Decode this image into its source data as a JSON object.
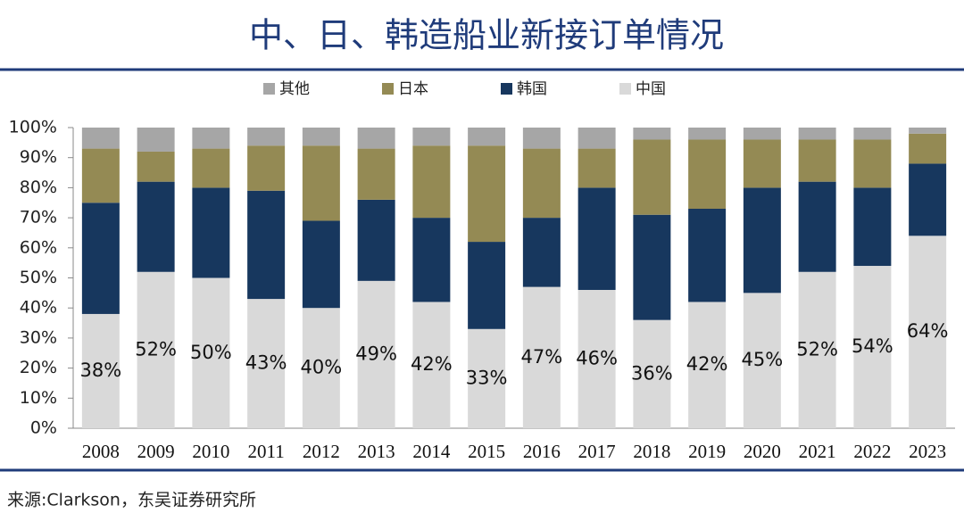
{
  "chart_data": {
    "type": "stacked_bar",
    "title": "中、日、韩造船业新接订单情况",
    "footnote": "来源:Clarkson，东吴证券研究所",
    "categories": [
      "2008",
      "2009",
      "2010",
      "2011",
      "2012",
      "2013",
      "2014",
      "2015",
      "2016",
      "2017",
      "2018",
      "2019",
      "2020",
      "2021",
      "2022",
      "2023"
    ],
    "series": [
      {
        "name": "中国",
        "color": "#d9d9d9",
        "values": [
          38,
          52,
          50,
          43,
          40,
          49,
          42,
          33,
          47,
          46,
          36,
          42,
          45,
          52,
          54,
          64
        ],
        "value_labels": [
          "38%",
          "52%",
          "50%",
          "43%",
          "40%",
          "49%",
          "42%",
          "33%",
          "47%",
          "46%",
          "36%",
          "42%",
          "45%",
          "52%",
          "54%",
          "64%"
        ]
      },
      {
        "name": "韩国",
        "color": "#17375e",
        "values": [
          37,
          30,
          30,
          36,
          29,
          27,
          28,
          29,
          23,
          34,
          35,
          31,
          35,
          30,
          26,
          24
        ]
      },
      {
        "name": "日本",
        "color": "#948a54",
        "values": [
          18,
          10,
          13,
          15,
          25,
          17,
          24,
          32,
          23,
          13,
          25,
          23,
          16,
          14,
          16,
          10
        ]
      },
      {
        "name": "其他",
        "color": "#a6a6a6",
        "values": [
          7,
          8,
          7,
          6,
          6,
          7,
          6,
          6,
          7,
          7,
          4,
          4,
          4,
          4,
          4,
          2
        ]
      }
    ],
    "ylim": [
      0,
      100
    ],
    "yticks": [
      {
        "value": 0,
        "label": "0%"
      },
      {
        "value": 10,
        "label": "10%"
      },
      {
        "value": 20,
        "label": "20%"
      },
      {
        "value": 30,
        "label": "30%"
      },
      {
        "value": 40,
        "label": "40%"
      },
      {
        "value": 50,
        "label": "50%"
      },
      {
        "value": 60,
        "label": "60%"
      },
      {
        "value": 70,
        "label": "70%"
      },
      {
        "value": 80,
        "label": "80%"
      },
      {
        "value": 90,
        "label": "90%"
      },
      {
        "value": 100,
        "label": "100%"
      }
    ],
    "legend": "top"
  }
}
